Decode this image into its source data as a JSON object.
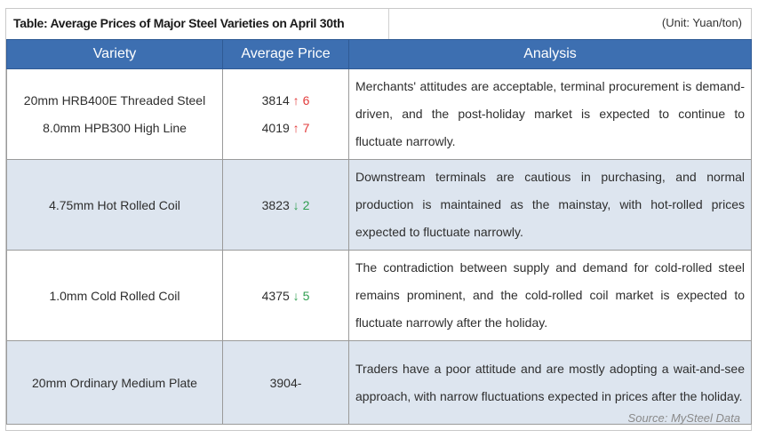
{
  "title": "Table: Average Prices of Major Steel Varieties on April 30th",
  "unit": "(Unit: Yuan/ton)",
  "columns": [
    "Variety",
    "Average Price",
    "Analysis"
  ],
  "rows": [
    {
      "varieties": [
        "20mm HRB400E Threaded Steel",
        "8.0mm HPB300 High Line"
      ],
      "prices": [
        {
          "value": "3814",
          "arrow": "↑",
          "change": "6",
          "direction": "up"
        },
        {
          "value": "4019",
          "arrow": "↑",
          "change": "7",
          "direction": "up"
        }
      ],
      "analysis": "Merchants' attitudes are acceptable, terminal procurement is demand-driven, and the post-holiday market is expected to continue to fluctuate narrowly."
    },
    {
      "varieties": [
        "4.75mm Hot Rolled Coil"
      ],
      "prices": [
        {
          "value": "3823",
          "arrow": "↓",
          "change": "2",
          "direction": "down"
        }
      ],
      "analysis": "Downstream terminals are cautious in purchasing, and normal production is maintained as the mainstay, with hot-rolled prices expected to fluctuate narrowly."
    },
    {
      "varieties": [
        "1.0mm Cold Rolled Coil"
      ],
      "prices": [
        {
          "value": "4375",
          "arrow": "↓",
          "change": "5",
          "direction": "down"
        }
      ],
      "analysis": "The contradiction between supply and demand for cold-rolled steel remains prominent, and the cold-rolled coil market is expected to fluctuate narrowly after the holiday."
    },
    {
      "varieties": [
        "20mm Ordinary Medium Plate"
      ],
      "prices": [
        {
          "value": "3904-",
          "arrow": "",
          "change": "",
          "direction": "flat"
        }
      ],
      "analysis": "Traders have a poor attitude and are mostly adopting a wait-and-see approach, with narrow fluctuations expected in prices after the holiday."
    }
  ],
  "source": "Source: MySteel Data",
  "colors": {
    "header_bg": "#3d6fb1",
    "shaded_row": "#dde5ef",
    "up": "#e23b3b",
    "down": "#2e9e4f"
  }
}
